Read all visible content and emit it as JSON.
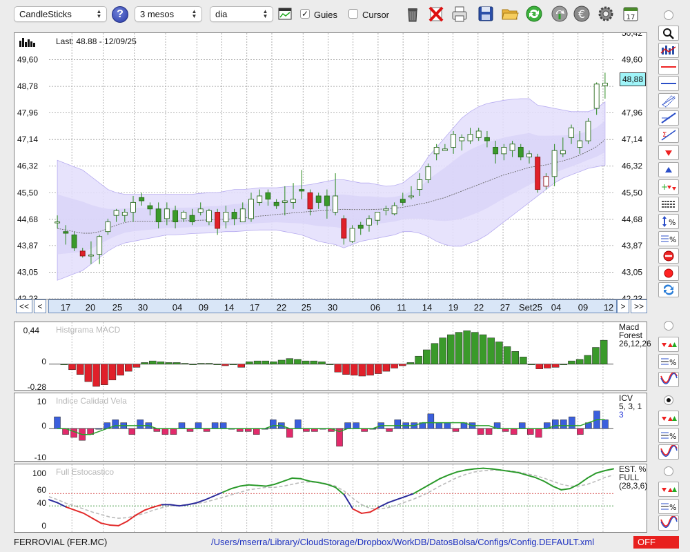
{
  "toolbar": {
    "chart_type": "CandleSticks",
    "period": "3 mesos",
    "interval": "dia",
    "help_label": "?",
    "guies_label": "Guies",
    "guies_checked": true,
    "cursor_label": "Cursor",
    "cursor_checked": false,
    "icons": [
      "trash-icon",
      "delete-icon",
      "print-icon",
      "save-icon",
      "open-folder-icon",
      "refresh-icon",
      "sync-icon",
      "currency-icon",
      "settings-icon",
      "calendar-icon"
    ]
  },
  "main_chart": {
    "last_label": "Last: 48.88 - 12/09/25",
    "last_value": "48,88",
    "y_ticks": [
      "49,60",
      "48,78",
      "47,96",
      "47,14",
      "46,32",
      "45,50",
      "44,68",
      "43,87",
      "43,05",
      "42,23"
    ],
    "right_ticks": [
      "49,60",
      "47,96",
      "47,14",
      "46,32",
      "45,50",
      "44,68",
      "43,87",
      "43,05",
      "42,23"
    ],
    "top_clip_label": "50,42",
    "dates": [
      "17",
      "20",
      "25",
      "30",
      "04",
      "09",
      "14",
      "17",
      "22",
      "25",
      "30",
      "06",
      "11",
      "14",
      "19",
      "22",
      "27",
      "Set25",
      "04",
      "09",
      "12"
    ],
    "nav": {
      "first": "<<",
      "prev": "<",
      "next": ">",
      "last": ">>"
    }
  },
  "chart_data": [
    {
      "type": "candlestick",
      "title": "",
      "y_axis_ticks": [
        42.23,
        43.05,
        43.87,
        44.68,
        45.5,
        46.32,
        47.14,
        47.96,
        48.78,
        49.6
      ],
      "ylim": [
        42.23,
        50.42
      ],
      "candles": [
        {
          "o": 44.6,
          "h": 44.8,
          "l": 44.4,
          "c": 44.6
        },
        {
          "o": 44.3,
          "h": 44.5,
          "l": 43.9,
          "c": 44.25
        },
        {
          "o": 44.2,
          "h": 44.3,
          "l": 43.7,
          "c": 43.8
        },
        {
          "o": 43.7,
          "h": 43.8,
          "l": 43.5,
          "c": 43.55
        },
        {
          "o": 43.55,
          "h": 44.0,
          "l": 43.3,
          "c": 43.58
        },
        {
          "o": 43.6,
          "h": 44.2,
          "l": 43.3,
          "c": 44.15
        },
        {
          "o": 44.3,
          "h": 44.7,
          "l": 44.2,
          "c": 44.6
        },
        {
          "o": 44.8,
          "h": 45.0,
          "l": 44.6,
          "c": 44.95
        },
        {
          "o": 44.8,
          "h": 45.0,
          "l": 44.6,
          "c": 44.9
        },
        {
          "o": 44.9,
          "h": 45.4,
          "l": 44.6,
          "c": 45.2
        },
        {
          "o": 45.35,
          "h": 45.5,
          "l": 45.1,
          "c": 45.25
        },
        {
          "o": 45.1,
          "h": 45.2,
          "l": 44.8,
          "c": 45.0
        },
        {
          "o": 45.0,
          "h": 45.2,
          "l": 44.4,
          "c": 44.6
        },
        {
          "o": 44.7,
          "h": 45.2,
          "l": 44.5,
          "c": 45.0
        },
        {
          "o": 44.95,
          "h": 45.1,
          "l": 44.4,
          "c": 44.6
        },
        {
          "o": 44.7,
          "h": 44.95,
          "l": 44.6,
          "c": 44.9
        },
        {
          "o": 44.8,
          "h": 45.0,
          "l": 44.5,
          "c": 44.6
        },
        {
          "o": 44.9,
          "h": 45.2,
          "l": 44.8,
          "c": 45.0
        },
        {
          "o": 44.6,
          "h": 45.0,
          "l": 44.5,
          "c": 44.95
        },
        {
          "o": 44.9,
          "h": 45.0,
          "l": 44.2,
          "c": 44.4
        },
        {
          "o": 44.6,
          "h": 45.1,
          "l": 44.4,
          "c": 44.9
        },
        {
          "o": 44.9,
          "h": 45.0,
          "l": 44.5,
          "c": 44.7
        },
        {
          "o": 44.6,
          "h": 45.2,
          "l": 44.6,
          "c": 45.0
        },
        {
          "o": 44.7,
          "h": 45.5,
          "l": 44.6,
          "c": 45.3
        },
        {
          "o": 45.2,
          "h": 45.6,
          "l": 45.1,
          "c": 45.4
        },
        {
          "o": 45.5,
          "h": 45.6,
          "l": 45.1,
          "c": 45.3
        },
        {
          "o": 45.2,
          "h": 45.3,
          "l": 45.0,
          "c": 45.1
        },
        {
          "o": 45.2,
          "h": 45.7,
          "l": 44.8,
          "c": 45.25
        },
        {
          "o": 45.2,
          "h": 45.8,
          "l": 45.0,
          "c": 45.3
        },
        {
          "o": 45.6,
          "h": 46.2,
          "l": 45.3,
          "c": 45.55
        },
        {
          "o": 45.5,
          "h": 45.6,
          "l": 44.8,
          "c": 45.0
        },
        {
          "o": 45.4,
          "h": 45.5,
          "l": 45.0,
          "c": 45.2
        },
        {
          "o": 45.4,
          "h": 45.6,
          "l": 44.7,
          "c": 45.1
        },
        {
          "o": 44.9,
          "h": 46.1,
          "l": 44.8,
          "c": 45.4
        },
        {
          "o": 44.7,
          "h": 44.8,
          "l": 43.9,
          "c": 44.1
        },
        {
          "o": 44.0,
          "h": 44.5,
          "l": 43.95,
          "c": 44.4
        },
        {
          "o": 44.5,
          "h": 44.6,
          "l": 44.2,
          "c": 44.4
        },
        {
          "o": 44.5,
          "h": 44.8,
          "l": 44.3,
          "c": 44.7
        },
        {
          "o": 44.65,
          "h": 44.9,
          "l": 44.5,
          "c": 44.9
        },
        {
          "o": 44.95,
          "h": 45.1,
          "l": 44.8,
          "c": 45.0
        },
        {
          "o": 44.85,
          "h": 45.2,
          "l": 44.8,
          "c": 45.1
        },
        {
          "o": 45.3,
          "h": 45.5,
          "l": 45.1,
          "c": 45.2
        },
        {
          "o": 45.4,
          "h": 45.7,
          "l": 45.3,
          "c": 45.4
        },
        {
          "o": 45.6,
          "h": 46.1,
          "l": 45.4,
          "c": 45.9
        },
        {
          "o": 45.9,
          "h": 46.4,
          "l": 45.8,
          "c": 46.3
        },
        {
          "o": 46.7,
          "h": 47.0,
          "l": 46.5,
          "c": 46.9
        },
        {
          "o": 46.8,
          "h": 47.0,
          "l": 46.8,
          "c": 46.85
        },
        {
          "o": 46.9,
          "h": 47.4,
          "l": 46.7,
          "c": 47.3
        },
        {
          "o": 47.1,
          "h": 47.3,
          "l": 46.8,
          "c": 47.2
        },
        {
          "o": 47.1,
          "h": 47.5,
          "l": 47.0,
          "c": 47.3
        },
        {
          "o": 47.2,
          "h": 47.5,
          "l": 47.1,
          "c": 47.4
        },
        {
          "o": 47.2,
          "h": 47.4,
          "l": 46.9,
          "c": 47.1
        },
        {
          "o": 46.9,
          "h": 47.1,
          "l": 46.4,
          "c": 46.7
        },
        {
          "o": 46.7,
          "h": 47.0,
          "l": 46.5,
          "c": 46.9
        },
        {
          "o": 46.8,
          "h": 47.1,
          "l": 46.6,
          "c": 47.0
        },
        {
          "o": 46.9,
          "h": 47.0,
          "l": 46.5,
          "c": 46.6
        },
        {
          "o": 46.6,
          "h": 46.8,
          "l": 46.4,
          "c": 46.7
        },
        {
          "o": 46.6,
          "h": 46.7,
          "l": 45.5,
          "c": 45.6
        },
        {
          "o": 46.0,
          "h": 46.1,
          "l": 45.6,
          "c": 45.7
        },
        {
          "o": 46.0,
          "h": 47.0,
          "l": 45.7,
          "c": 46.8
        },
        {
          "o": 46.7,
          "h": 47.2,
          "l": 46.6,
          "c": 46.8
        },
        {
          "o": 47.2,
          "h": 47.6,
          "l": 47.0,
          "c": 47.5
        },
        {
          "o": 46.9,
          "h": 47.4,
          "l": 46.7,
          "c": 47.1
        },
        {
          "o": 47.1,
          "h": 47.8,
          "l": 47.0,
          "c": 47.7
        },
        {
          "o": 48.1,
          "h": 48.9,
          "l": 47.9,
          "c": 48.85
        },
        {
          "o": 48.8,
          "h": 49.2,
          "l": 48.4,
          "c": 48.88
        }
      ],
      "ma": [
        44.4,
        44.35,
        44.3,
        44.25,
        44.25,
        44.3,
        44.4,
        44.5,
        44.58,
        44.62,
        44.62,
        44.62,
        44.62,
        44.63,
        44.63,
        44.63,
        44.64,
        44.65,
        44.66,
        44.68,
        44.68,
        44.7,
        44.72,
        44.74,
        44.78,
        44.8,
        44.83,
        44.85,
        44.88,
        44.9,
        44.92,
        44.94,
        44.96,
        44.98,
        44.99,
        44.98,
        44.98,
        44.98,
        44.99,
        45.0,
        45.02,
        45.05,
        45.1,
        45.15,
        45.2,
        45.28,
        45.35,
        45.45,
        45.55,
        45.65,
        45.75,
        45.85,
        45.95,
        46.05,
        46.12,
        46.2,
        46.28,
        46.32,
        46.36,
        46.42,
        46.48,
        46.56,
        46.66,
        46.78,
        46.92,
        47.14
      ],
      "bb_upper": [
        46.5,
        46.4,
        46.3,
        46.2,
        46.0,
        45.8,
        45.6,
        45.5,
        45.45,
        45.45,
        45.45,
        45.45,
        45.45,
        45.45,
        45.45,
        45.45,
        45.45,
        45.48,
        45.5,
        45.5,
        45.55,
        45.6,
        45.6,
        45.62,
        45.65,
        45.65,
        45.65,
        45.68,
        45.7,
        45.72,
        45.75,
        45.8,
        45.85,
        45.9,
        45.9,
        45.85,
        45.8,
        45.8,
        45.75,
        45.7,
        45.72,
        45.8,
        46.0,
        46.2,
        46.6,
        46.9,
        47.2,
        47.5,
        47.8,
        48.0,
        48.15,
        48.25,
        48.3,
        48.35,
        48.38,
        48.4,
        48.4,
        48.2,
        48.15,
        48.1,
        48.05,
        48.0,
        48.0,
        48.0,
        48.1,
        48.3
      ],
      "bb_lower": [
        42.8,
        42.9,
        43.0,
        43.1,
        43.3,
        43.5,
        43.7,
        43.85,
        43.95,
        44.0,
        44.05,
        44.1,
        44.15,
        44.2,
        44.2,
        44.22,
        44.24,
        44.25,
        44.26,
        44.28,
        44.3,
        44.3,
        44.32,
        44.34,
        44.35,
        44.35,
        44.35,
        44.3,
        44.25,
        44.2,
        44.1,
        44.0,
        43.95,
        43.9,
        43.8,
        43.9,
        44.0,
        44.05,
        44.1,
        44.15,
        44.2,
        44.3,
        44.3,
        44.25,
        44.15,
        44.0,
        43.9,
        43.85,
        43.85,
        43.95,
        44.05,
        44.2,
        44.4,
        44.6,
        44.8,
        45.0,
        45.2,
        45.4,
        45.6,
        45.8,
        45.95,
        46.05,
        46.15,
        46.25,
        46.3,
        46.35
      ]
    },
    {
      "type": "bar",
      "title": "Histgrama MACD",
      "legend": [
        "Macd",
        "Forest",
        "26,12,26"
      ],
      "y_ticks": [
        "0,44",
        "0",
        "-0,28"
      ],
      "ylim": [
        -0.28,
        0.44
      ],
      "values": [
        0,
        -0.07,
        -0.13,
        -0.22,
        -0.28,
        -0.26,
        -0.2,
        -0.14,
        -0.09,
        -0.04,
        0.02,
        0.04,
        0.03,
        0.02,
        0.02,
        0.01,
        0.0,
        0.01,
        0.01,
        0.0,
        -0.02,
        0.0,
        -0.04,
        0.03,
        0.04,
        0.04,
        0.03,
        0.05,
        0.07,
        0.06,
        0.04,
        0.04,
        0.03,
        0.0,
        -0.1,
        -0.13,
        -0.14,
        -0.15,
        -0.14,
        -0.12,
        -0.09,
        -0.05,
        -0.02,
        0.02,
        0.1,
        0.18,
        0.26,
        0.33,
        0.37,
        0.4,
        0.42,
        0.4,
        0.37,
        0.33,
        0.28,
        0.22,
        0.16,
        0.09,
        0.0,
        -0.06,
        -0.05,
        -0.04,
        0.0,
        0.04,
        0.06,
        0.11,
        0.21,
        0.3
      ]
    },
    {
      "type": "bar",
      "title": "Indice Calidad Vela",
      "legend": [
        "ICV",
        "5, 3, 1",
        "3"
      ],
      "y_ticks": [
        "10",
        "0",
        "-10"
      ],
      "ylim": [
        -11,
        12
      ],
      "values": [
        4,
        -2,
        -3,
        -4,
        -2,
        0,
        2,
        3,
        2,
        -2,
        3,
        2,
        -1,
        -2,
        -2,
        2,
        -1,
        2,
        -1,
        2,
        2,
        0,
        -1,
        -1,
        -2,
        0,
        3,
        2,
        -3,
        3,
        -1,
        -1,
        0,
        -1,
        -6,
        2,
        2,
        -1,
        0,
        2,
        -1,
        3,
        2,
        2,
        2,
        5,
        2,
        2,
        -1,
        2,
        2,
        -2,
        -2,
        2,
        -1,
        -2,
        2,
        -2,
        -3,
        2,
        3,
        3,
        4,
        -2,
        2,
        6,
        3
      ],
      "line": [
        0,
        0,
        -1,
        -2,
        -2,
        -1,
        0,
        1,
        1,
        1,
        1,
        1,
        0,
        0,
        0,
        0,
        0,
        0,
        0,
        0,
        0,
        0,
        0,
        0,
        0,
        0,
        1,
        1,
        0,
        0,
        0,
        0,
        0,
        0,
        -1,
        0,
        0,
        0,
        0,
        1,
        1,
        1,
        1,
        1,
        2,
        2,
        2,
        2,
        2,
        2,
        1,
        1,
        1,
        0,
        0,
        0,
        0,
        0,
        0,
        0,
        1,
        1,
        1,
        1,
        2,
        3,
        3
      ]
    },
    {
      "type": "line",
      "title": "Full Estocastico",
      "legend": [
        "EST. %",
        "FULL",
        "(28,3,6)"
      ],
      "y_ticks": [
        "100",
        "60",
        "40",
        "0"
      ],
      "ylim": [
        0,
        105
      ],
      "k": [
        50,
        45,
        38,
        33,
        28,
        20,
        12,
        9,
        8,
        15,
        25,
        33,
        38,
        42,
        42,
        40,
        42,
        45,
        50,
        56,
        62,
        68,
        72,
        74,
        73,
        72,
        75,
        80,
        85,
        84,
        80,
        78,
        75,
        70,
        58,
        35,
        28,
        30,
        38,
        45,
        50,
        55,
        60,
        68,
        76,
        84,
        90,
        95,
        98,
        100,
        101,
        100,
        98,
        96,
        94,
        90,
        86,
        80,
        72,
        66,
        68,
        75,
        85,
        93,
        97,
        100
      ],
      "d": [
        55,
        50,
        44,
        40,
        35,
        30,
        26,
        22,
        20,
        21,
        24,
        28,
        33,
        37,
        40,
        41,
        42,
        44,
        46,
        50,
        54,
        58,
        62,
        66,
        68,
        70,
        70,
        72,
        75,
        78,
        79,
        78,
        76,
        72,
        64,
        52,
        42,
        36,
        35,
        37,
        41,
        46,
        51,
        57,
        64,
        72,
        79,
        86,
        91,
        95,
        97,
        98,
        98,
        97,
        95,
        92,
        89,
        85,
        80,
        75,
        72,
        72,
        75,
        80,
        86,
        90
      ]
    }
  ],
  "indicators": {
    "macd_legend": [
      "Macd",
      "Forest",
      "26,12,26"
    ],
    "icv_legend": [
      "ICV",
      "5, 3, 1",
      "3"
    ],
    "stoch_legend": [
      "EST. %",
      "FULL",
      "(28,3,6)"
    ]
  },
  "colors": {
    "up": "#3a9a2a",
    "down": "#e0202a",
    "bands": "#e3defc",
    "bands_inner": "#d5cff7",
    "icv_up": "#3b5fdd",
    "icv_down": "#e22a6b"
  },
  "status": {
    "instrument": "FERROVIAL (FER.MC)",
    "path": "/Users/mserra/Library/CloudStorage/Dropbox/WorkDB/DatosBolsa/Configs/Config.DEFAULT.xml",
    "mode": "OFF"
  }
}
